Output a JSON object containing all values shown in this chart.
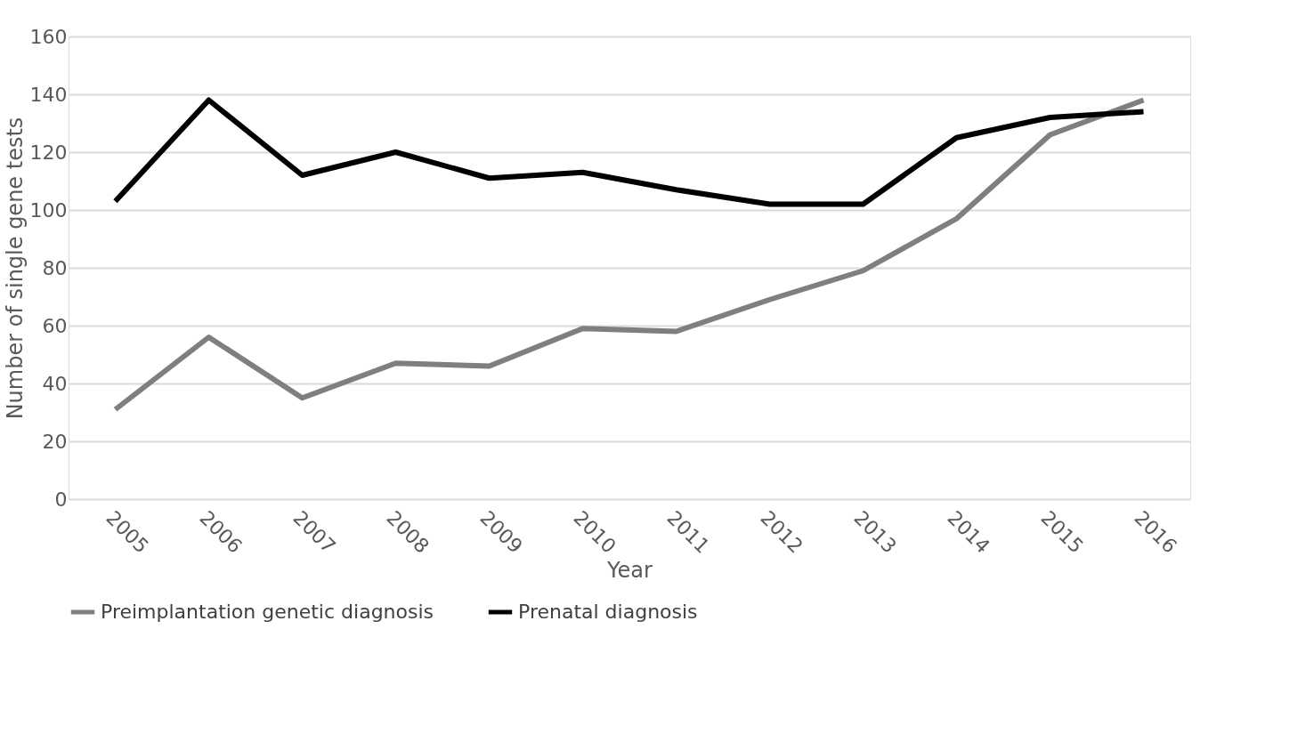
{
  "chart_data": {
    "type": "line",
    "xlabel": "Year",
    "ylabel": "Number of single gene tests",
    "categories": [
      "2005",
      "2006",
      "2007",
      "2008",
      "2009",
      "2010",
      "2011",
      "2012",
      "2013",
      "2014",
      "2015",
      "2016"
    ],
    "series": [
      {
        "name": "Preimplantation genetic diagnosis",
        "color": "#7f7f7f",
        "values": [
          31,
          56,
          35,
          47,
          46,
          59,
          58,
          69,
          79,
          97,
          126,
          138
        ]
      },
      {
        "name": "Prenatal diagnosis",
        "color": "#000000",
        "values": [
          103,
          138,
          112,
          120,
          111,
          113,
          107,
          102,
          102,
          125,
          132,
          134
        ]
      }
    ],
    "ylim": [
      0,
      160
    ],
    "yticks": [
      0,
      20,
      40,
      60,
      80,
      100,
      120,
      140,
      160
    ],
    "grid": "y",
    "legend": "bottom",
    "marker": "none",
    "line_style": "solid"
  }
}
